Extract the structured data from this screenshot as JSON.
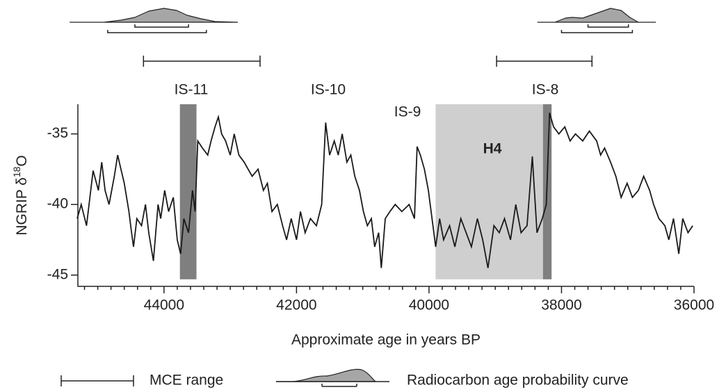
{
  "chart_data": {
    "type": "line",
    "xlabel": "Approximate age in years BP",
    "ylabel": {
      "main": "NGRIP δ",
      "sup": "18",
      "end": "O"
    },
    "xlim": [
      45300,
      36000
    ],
    "ylim": [
      -45.8,
      -32.9
    ],
    "xticks": [
      44000,
      42000,
      40000,
      38000,
      36000
    ],
    "xminorticks": [
      45200,
      45000,
      44800,
      44600,
      44400,
      44200,
      43800,
      43600,
      43400,
      43200,
      43000,
      42800,
      42600,
      42400,
      42200,
      41800,
      41600,
      41400,
      41200,
      41000,
      40800,
      40600,
      40400,
      40200,
      39800,
      39600,
      39400,
      39200,
      39000,
      38800,
      38600,
      38400,
      38200,
      37800,
      37600,
      37400,
      37200,
      37000,
      36800,
      36600,
      36400,
      36200
    ],
    "yticks": [
      -35,
      -40,
      -45
    ],
    "series": [
      {
        "color": "#1a1a1a",
        "x": [
          45310,
          45250,
          45170,
          45070,
          44990,
          44940,
          44890,
          44830,
          44750,
          44700,
          44650,
          44600,
          44530,
          44490,
          44460,
          44410,
          44340,
          44280,
          44230,
          44160,
          44090,
          44050,
          43990,
          43930,
          43860,
          43800,
          43750,
          43700,
          43630,
          43570,
          43530,
          43490,
          43420,
          43340,
          43290,
          43230,
          43180,
          43130,
          43070,
          43000,
          42940,
          42870,
          42790,
          42730,
          42670,
          42580,
          42500,
          42440,
          42370,
          42290,
          42210,
          42150,
          42080,
          42000,
          41940,
          41870,
          41790,
          41700,
          41620,
          41560,
          41500,
          41430,
          41370,
          41310,
          41240,
          41180,
          41120,
          41050,
          40990,
          40930,
          40870,
          40820,
          40760,
          40720,
          40660,
          40590,
          40510,
          40410,
          40300,
          40220,
          40180,
          40130,
          40070,
          40010,
          39940,
          39900,
          39840,
          39780,
          39690,
          39610,
          39520,
          39440,
          39360,
          39270,
          39190,
          39110,
          39020,
          38940,
          38860,
          38770,
          38690,
          38610,
          38520,
          38440,
          38370,
          38290,
          38230,
          38180,
          38120,
          38040,
          37950,
          37870,
          37790,
          37680,
          37580,
          37470,
          37410,
          37350,
          37260,
          37180,
          37100,
          37010,
          36930,
          36840,
          36760,
          36670,
          36610,
          36530,
          36440,
          36380,
          36310,
          36230,
          36170,
          36090,
          36020
        ],
        "values": [
          -41,
          -40,
          -41.5,
          -37.6,
          -39,
          -37,
          -39,
          -40,
          -38,
          -36.5,
          -37.5,
          -38.5,
          -40.5,
          -42,
          -43,
          -41,
          -41.5,
          -40,
          -42,
          -44,
          -40,
          -41,
          -39,
          -40.5,
          -39.5,
          -42.5,
          -43.5,
          -41,
          -42,
          -39,
          -40.5,
          -35.5,
          -36,
          -36.5,
          -35.5,
          -34.5,
          -33.8,
          -35,
          -35.5,
          -36.5,
          -35,
          -36.5,
          -37,
          -37.5,
          -38,
          -37.5,
          -39,
          -38.5,
          -40.5,
          -40,
          -41.5,
          -42.5,
          -41,
          -42.5,
          -40.5,
          -42,
          -41,
          -41.5,
          -40,
          -34.2,
          -36.5,
          -35.5,
          -36.5,
          -35,
          -37,
          -36.5,
          -38,
          -39,
          -40.5,
          -41.5,
          -41,
          -43,
          -42,
          -44.5,
          -41,
          -40.5,
          -40,
          -40.5,
          -40,
          -41,
          -35.9,
          -36.5,
          -37.5,
          -39,
          -41.5,
          -43,
          -41,
          -42.5,
          -41.5,
          -43,
          -41,
          -42,
          -43,
          -41,
          -42.5,
          -44.5,
          -41.5,
          -42,
          -41,
          -42.5,
          -40,
          -42,
          -41.5,
          -36.6,
          -42,
          -41,
          -40,
          -33.5,
          -34.5,
          -35,
          -34.5,
          -35.5,
          -35,
          -35.5,
          -34.8,
          -35.5,
          -36.5,
          -36,
          -37,
          -38,
          -39.5,
          -38.5,
          -39.5,
          -39,
          -38,
          -39,
          -40,
          -41,
          -41.5,
          -42.5,
          -41,
          -43.5,
          -41,
          -42,
          -41.5
        ]
      }
    ],
    "shaded_regions": [
      {
        "x": [
          43760,
          43510
        ],
        "y": [
          -45.3,
          -32.9
        ],
        "color": "#7f7f7f"
      },
      {
        "x": [
          39900,
          38280
        ],
        "y": [
          -45.3,
          -32.9
        ],
        "color": "#cfcfcf"
      },
      {
        "x": [
          38280,
          38150
        ],
        "y": [
          -45.3,
          -32.9
        ],
        "color": "#7f7f7f"
      }
    ],
    "annotations": [
      "IS-11",
      "IS-10",
      "IS-9",
      "IS-8",
      "H4"
    ],
    "mce_ranges": [
      [
        44310,
        42550
      ],
      [
        38980,
        37540
      ]
    ],
    "radiocarbon": [
      {
        "x": [
          45420,
          44910,
          44650,
          44440,
          44230,
          44000,
          43810,
          43650,
          43440,
          43230,
          42890
        ],
        "density": [
          0,
          0,
          0.15,
          0.35,
          0.8,
          1,
          0.85,
          0.5,
          0.25,
          0.05,
          0
        ],
        "brackets": [
          [
            44440,
            43630
          ],
          [
            44850,
            43360
          ]
        ]
      },
      {
        "x": [
          38360,
          38100,
          37940,
          37840,
          37680,
          37470,
          37260,
          37100,
          36970,
          36840,
          36580
        ],
        "density": [
          0,
          0,
          0.3,
          0.35,
          0.3,
          0.65,
          1,
          0.85,
          0.35,
          0,
          0
        ],
        "brackets": [
          [
            37600,
            36990
          ],
          [
            38000,
            36930
          ]
        ]
      }
    ],
    "curve_fill": "#a6a6a6",
    "legend": {
      "mce": "MCE range",
      "radiocarbon": "Radiocarbon age probability curve"
    }
  }
}
